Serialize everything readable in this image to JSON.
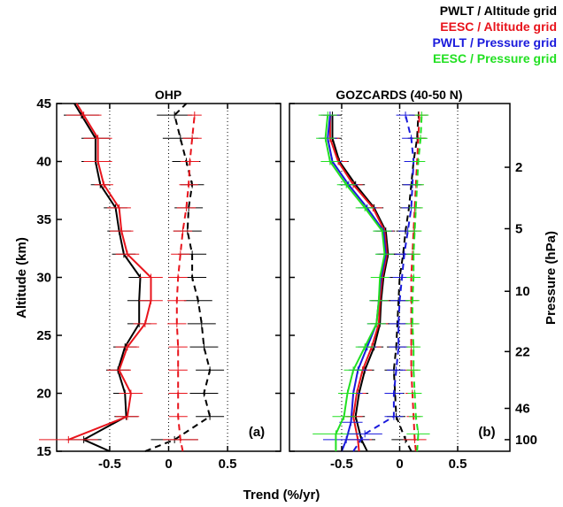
{
  "figure": {
    "xlabel": "Trend (%/yr)",
    "ylabel_left": "Altitude (km)",
    "ylabel_right": "Pressure (hPa)"
  },
  "legend": {
    "placement": "top-right",
    "entries": [
      {
        "label": "PWLT / Altitude grid",
        "color": "#000000"
      },
      {
        "label": "EESC / Altitude grid",
        "color": "#e8141c"
      },
      {
        "label": "PWLT / Pressure grid",
        "color": "#1a1adc"
      },
      {
        "label": "EESC / Pressure grid",
        "color": "#22e022"
      }
    ]
  },
  "chart_data": [
    {
      "type": "line",
      "panel_label": "(a)",
      "title": "OHP",
      "xlim": [
        -0.95,
        0.95
      ],
      "ylim": [
        15,
        45
      ],
      "x_ticks": [
        -0.5,
        0,
        0.5
      ],
      "x_tick_labels": [
        "-0.5",
        "0",
        "0.5"
      ],
      "y_ticks": [
        15,
        20,
        25,
        30,
        35,
        40,
        45
      ],
      "y_tick_labels": [
        "15",
        "20",
        "25",
        "30",
        "35",
        "40",
        "45"
      ],
      "vertical_dotted_lines": [
        -0.5,
        0,
        0.5
      ],
      "series": [
        {
          "key": "pwlt_alt",
          "color": "#000000",
          "dash": false,
          "y": [
            15,
            16,
            18,
            20,
            22,
            24,
            26,
            28,
            30,
            32,
            34,
            36,
            38,
            40,
            42,
            44,
            45
          ],
          "x": [
            -0.5,
            -0.72,
            -0.36,
            -0.37,
            -0.43,
            -0.37,
            -0.25,
            -0.25,
            -0.24,
            -0.38,
            -0.42,
            -0.45,
            -0.58,
            -0.62,
            -0.62,
            -0.74,
            -0.8
          ],
          "err": [
            0,
            0.15,
            0.1,
            0.1,
            0.1,
            0.1,
            0.1,
            0.1,
            0.1,
            0.1,
            0.1,
            0.1,
            0.08,
            0.12,
            0.12,
            0.15,
            0
          ]
        },
        {
          "key": "eesc_alt",
          "color": "#e8141c",
          "dash": false,
          "y": [
            16,
            18,
            20,
            22,
            24,
            26,
            28,
            30,
            32,
            34,
            36,
            38,
            40,
            42,
            44,
            45
          ],
          "x": [
            -0.85,
            -0.35,
            -0.32,
            -0.42,
            -0.35,
            -0.2,
            -0.15,
            -0.15,
            -0.35,
            -0.4,
            -0.42,
            -0.55,
            -0.6,
            -0.6,
            -0.72,
            -0.78
          ],
          "err": [
            0.25,
            0.1,
            0.1,
            0.1,
            0.1,
            0.1,
            0.1,
            0.1,
            0.1,
            0.1,
            0.1,
            0.08,
            0.12,
            0.12,
            0.15,
            0
          ]
        },
        {
          "key": "pwlt_alt_const",
          "color": "#000000",
          "dash": true,
          "y": [
            15,
            16,
            18,
            20,
            22,
            24,
            26,
            28,
            30,
            32,
            34,
            36,
            38,
            40,
            42,
            44,
            45
          ],
          "x": [
            -0.2,
            0.05,
            0.35,
            0.3,
            0.35,
            0.3,
            0.28,
            0.25,
            0.2,
            0.2,
            0.16,
            0.17,
            0.2,
            0.15,
            0.1,
            0.05,
            0.15
          ],
          "err": [
            0,
            0.2,
            0.12,
            0.12,
            0.12,
            0.12,
            0.12,
            0.12,
            0.12,
            0.12,
            0.12,
            0.12,
            0.1,
            0.12,
            0.15,
            0.15,
            0
          ]
        },
        {
          "key": "eesc_alt_const",
          "color": "#e8141c",
          "dash": true,
          "y": [
            15,
            16,
            18,
            20,
            22,
            24,
            26,
            28,
            30,
            32,
            34,
            36,
            38,
            40,
            42,
            44
          ],
          "x": [
            0.12,
            0.1,
            0.08,
            0.08,
            0.08,
            0.08,
            0.07,
            0.07,
            0.08,
            0.1,
            0.12,
            0.15,
            0.17,
            0.18,
            0.2,
            0.22
          ],
          "err": [
            0,
            0.15,
            0.08,
            0.08,
            0.08,
            0.08,
            0.08,
            0.08,
            0.08,
            0.08,
            0.08,
            0.08,
            0.08,
            0.08,
            0.08,
            0.06
          ]
        }
      ]
    },
    {
      "type": "line",
      "panel_label": "(b)",
      "title": "GOZCARDS (40-50 N)",
      "xlim": [
        -0.95,
        0.95
      ],
      "ylim": [
        15,
        45
      ],
      "x_ticks": [
        -0.5,
        0,
        0.5
      ],
      "x_tick_labels": [
        "-0.5",
        "0",
        "0.5"
      ],
      "y_ticks": [
        15,
        20,
        25,
        30,
        35,
        40,
        45
      ],
      "right_ticks_altitude": [
        16.0,
        18.7,
        23.6,
        28.8,
        34.2,
        39.5
      ],
      "right_tick_labels": [
        "100",
        "46",
        "22",
        "10",
        "5",
        "2"
      ],
      "vertical_dotted_lines": [
        -0.5,
        0,
        0.5
      ],
      "series": [
        {
          "key": "pwlt_alt",
          "color": "#000000",
          "dash": false,
          "y": [
            15,
            16,
            18,
            20,
            22,
            24,
            26,
            28,
            30,
            32,
            34,
            36,
            38,
            40,
            42,
            44
          ],
          "x": [
            -0.28,
            -0.33,
            -0.38,
            -0.35,
            -0.3,
            -0.22,
            -0.17,
            -0.16,
            -0.14,
            -0.1,
            -0.12,
            -0.22,
            -0.38,
            -0.52,
            -0.58,
            -0.58
          ],
          "err": [
            0,
            0.12,
            0.08,
            0.08,
            0.08,
            0.08,
            0.08,
            0.08,
            0.08,
            0.08,
            0.08,
            0.08,
            0.08,
            0.08,
            0.08,
            0.08
          ]
        },
        {
          "key": "eesc_alt",
          "color": "#e8141c",
          "dash": false,
          "y": [
            15,
            16,
            18,
            20,
            22,
            24,
            26,
            28,
            30,
            32,
            34,
            36,
            38,
            40,
            42,
            44
          ],
          "x": [
            -0.35,
            -0.36,
            -0.4,
            -0.37,
            -0.32,
            -0.24,
            -0.18,
            -0.17,
            -0.15,
            -0.11,
            -0.13,
            -0.23,
            -0.4,
            -0.53,
            -0.6,
            -0.6
          ],
          "err": [
            0,
            0.12,
            0.08,
            0.08,
            0.08,
            0.08,
            0.08,
            0.08,
            0.08,
            0.08,
            0.08,
            0.08,
            0.08,
            0.08,
            0.08,
            0.08
          ]
        },
        {
          "key": "pwlt_prs",
          "color": "#1a1adc",
          "dash": false,
          "y": [
            15,
            16,
            17.5,
            20,
            22,
            24,
            26,
            28,
            30,
            32,
            34,
            36,
            38,
            40,
            42,
            44
          ],
          "x": [
            -0.5,
            -0.46,
            -0.42,
            -0.4,
            -0.36,
            -0.28,
            -0.2,
            -0.18,
            -0.16,
            -0.12,
            -0.14,
            -0.28,
            -0.44,
            -0.58,
            -0.62,
            -0.6
          ],
          "err": [
            0,
            0.2,
            0.1,
            0.08,
            0.08,
            0.08,
            0.08,
            0.08,
            0.08,
            0.08,
            0.08,
            0.08,
            0.08,
            0.08,
            0.08,
            0.08
          ]
        },
        {
          "key": "eesc_prs",
          "color": "#22e022",
          "dash": false,
          "y": [
            15,
            16.5,
            18,
            20,
            22,
            24,
            26,
            28,
            30,
            32,
            34,
            36,
            38,
            40,
            42,
            44
          ],
          "x": [
            -0.55,
            -0.55,
            -0.48,
            -0.45,
            -0.4,
            -0.3,
            -0.2,
            -0.18,
            -0.17,
            -0.13,
            -0.15,
            -0.3,
            -0.46,
            -0.6,
            -0.64,
            -0.62
          ],
          "err": [
            0,
            0.2,
            0.1,
            0.08,
            0.08,
            0.08,
            0.08,
            0.08,
            0.08,
            0.08,
            0.08,
            0.08,
            0.08,
            0.08,
            0.08,
            0.08
          ]
        },
        {
          "key": "pwlt_alt_const",
          "color": "#000000",
          "dash": true,
          "y": [
            15,
            16,
            18,
            20,
            22,
            24,
            26,
            28,
            30,
            32,
            34,
            36,
            38,
            40,
            42,
            44
          ],
          "x": [
            0.1,
            0.05,
            -0.03,
            -0.04,
            -0.05,
            -0.03,
            -0.02,
            -0.01,
            0.0,
            0.03,
            0.05,
            0.08,
            0.1,
            0.12,
            0.15,
            0.16
          ],
          "err": [
            0,
            0.12,
            0.08,
            0.08,
            0.08,
            0.08,
            0.08,
            0.08,
            0.08,
            0.08,
            0.08,
            0.08,
            0.08,
            0.08,
            0.08,
            0.08
          ]
        },
        {
          "key": "eesc_alt_const",
          "color": "#e8141c",
          "dash": true,
          "y": [
            15,
            16,
            18,
            20,
            22,
            24,
            26,
            28,
            30,
            32,
            34,
            36,
            38,
            40,
            42,
            44
          ],
          "x": [
            0.14,
            0.13,
            0.12,
            0.11,
            0.1,
            0.1,
            0.1,
            0.1,
            0.1,
            0.11,
            0.12,
            0.13,
            0.14,
            0.15,
            0.16,
            0.17
          ],
          "err": [
            0,
            0.1,
            0.06,
            0.06,
            0.06,
            0.06,
            0.06,
            0.06,
            0.06,
            0.06,
            0.06,
            0.06,
            0.06,
            0.06,
            0.06,
            0.06
          ]
        },
        {
          "key": "pwlt_prs_const",
          "color": "#1a1adc",
          "dash": true,
          "y": [
            15,
            16.5,
            18,
            20,
            22,
            24,
            26,
            28,
            30,
            32,
            34,
            36,
            38,
            40,
            42,
            44
          ],
          "x": [
            -0.4,
            -0.3,
            -0.05,
            -0.05,
            -0.03,
            -0.01,
            -0.01,
            0.0,
            0.02,
            0.04,
            0.07,
            0.1,
            0.11,
            0.12,
            0.1,
            0.05
          ],
          "err": [
            0,
            0.15,
            0.08,
            0.08,
            0.08,
            0.08,
            0.08,
            0.08,
            0.08,
            0.08,
            0.08,
            0.08,
            0.08,
            0.08,
            0.08,
            0.08
          ]
        },
        {
          "key": "eesc_prs_const",
          "color": "#22e022",
          "dash": true,
          "y": [
            15,
            16.5,
            18,
            20,
            22,
            24,
            26,
            28,
            30,
            32,
            34,
            36,
            38,
            40,
            42,
            44
          ],
          "x": [
            0.15,
            0.16,
            0.14,
            0.13,
            0.12,
            0.12,
            0.11,
            0.11,
            0.12,
            0.12,
            0.13,
            0.14,
            0.15,
            0.16,
            0.18,
            0.19
          ],
          "err": [
            0,
            0.1,
            0.06,
            0.06,
            0.06,
            0.06,
            0.06,
            0.06,
            0.06,
            0.06,
            0.06,
            0.06,
            0.06,
            0.06,
            0.06,
            0.06
          ]
        }
      ]
    }
  ]
}
